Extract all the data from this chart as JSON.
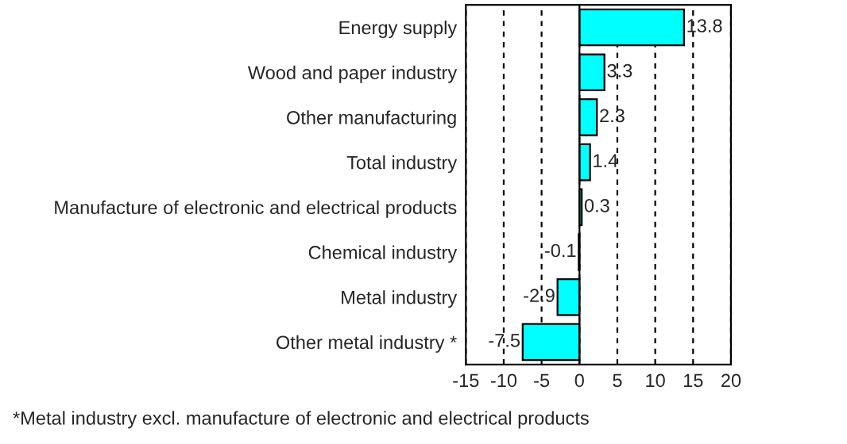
{
  "chart_data": {
    "type": "bar",
    "orientation": "horizontal",
    "categories": [
      "Energy supply",
      "Wood and paper industry",
      "Other manufacturing",
      "Total industry",
      "Manufacture of electronic and electrical products",
      "Chemical industry",
      "Metal industry",
      "Other metal industry *"
    ],
    "values": [
      13.8,
      3.3,
      2.3,
      1.4,
      0.3,
      -0.1,
      -2.9,
      -7.5
    ],
    "color": "#00ffff",
    "xlim": [
      -15,
      20
    ],
    "xticks": [
      -15,
      -10,
      -5,
      0,
      5,
      10,
      15,
      20
    ],
    "grid": "x",
    "data_labels": true,
    "annotations": [
      "*Metal industry excl. manufacture of electronic and electrical products"
    ]
  }
}
